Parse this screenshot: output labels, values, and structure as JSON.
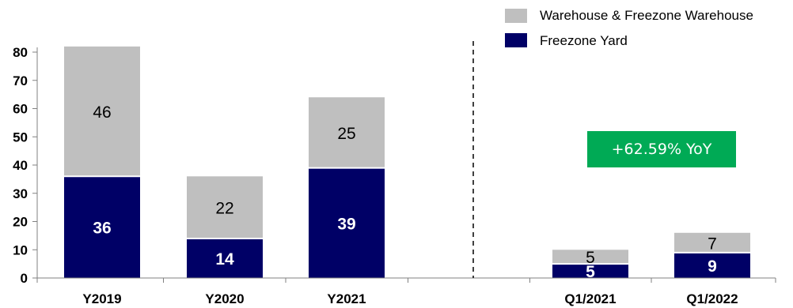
{
  "chart_data": {
    "type": "bar",
    "stacked": true,
    "categories": [
      "Y2019",
      "Y2020",
      "Y2021",
      "",
      "Q1/2021",
      "Q1/2022"
    ],
    "series": [
      {
        "name": "Freezone Yard",
        "values": [
          36,
          14,
          39,
          null,
          5,
          9
        ],
        "color": "#000066"
      },
      {
        "name": "Warehouse & Freezone Warehouse",
        "values": [
          46,
          22,
          25,
          null,
          5,
          7
        ],
        "color": "#bfbfbf"
      }
    ],
    "y_ticks": [
      "0",
      "10",
      "20",
      "30",
      "40",
      "50",
      "60",
      "70",
      "80"
    ],
    "ylim": [
      0,
      80
    ],
    "grid": false,
    "legend_position": "top-right",
    "annotation": "+62.59% YoY",
    "annotation_color": "#00aa55",
    "divider": "dashed vertical line between annual and quarterly groups"
  }
}
